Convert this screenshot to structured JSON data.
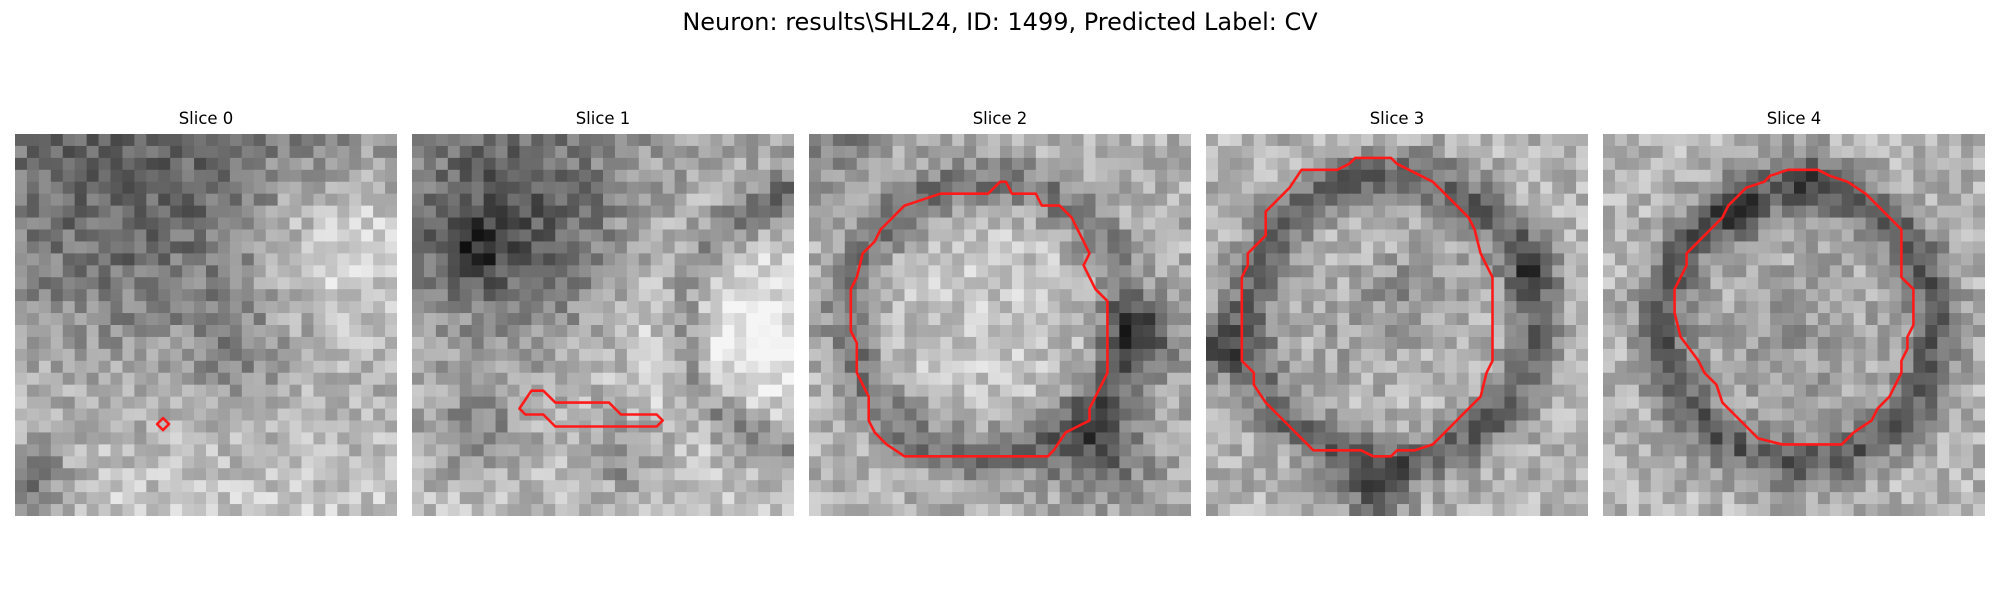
{
  "figure": {
    "title": "Neuron: results\\SHL24, ID: 1499, Predicted Label: CV"
  },
  "panels": [
    {
      "title": "Slice 0"
    },
    {
      "title": "Slice 1"
    },
    {
      "title": "Slice 2"
    },
    {
      "title": "Slice 3"
    },
    {
      "title": "Slice 4"
    }
  ],
  "colors": {
    "contour": "#ff1a1a",
    "background": "#ffffff"
  }
}
